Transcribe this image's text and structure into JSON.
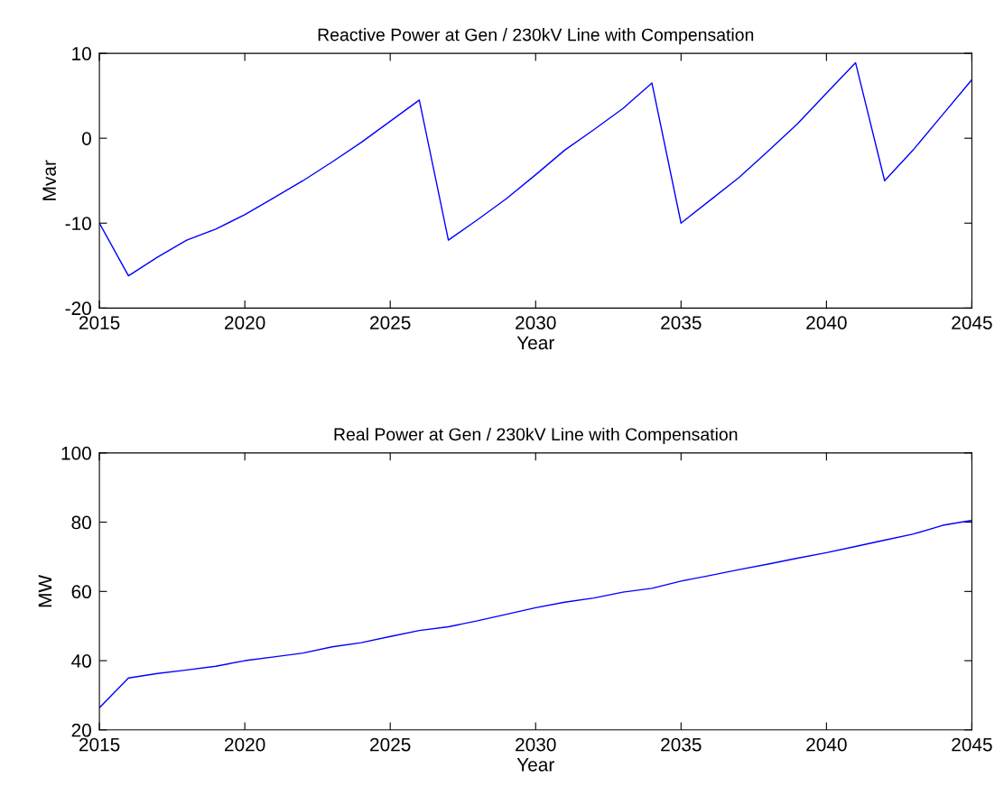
{
  "chart_data": [
    {
      "type": "line",
      "title": "Reactive Power at Gen / 230kV Line with Compensation",
      "xlabel": "Year",
      "ylabel": "Mvar",
      "x": [
        2015,
        2016,
        2017,
        2018,
        2019,
        2020,
        2021,
        2022,
        2023,
        2024,
        2025,
        2026,
        2027,
        2028,
        2029,
        2030,
        2031,
        2032,
        2033,
        2034,
        2035,
        2036,
        2037,
        2038,
        2039,
        2040,
        2041,
        2042,
        2043,
        2044,
        2045
      ],
      "series": [
        {
          "color": "#0000ff",
          "values": [
            -10,
            -16.2,
            -14.0,
            -12.0,
            -10.7,
            -9.0,
            -7.0,
            -5.0,
            -2.8,
            -0.5,
            2.0,
            4.5,
            -12.0,
            -9.6,
            -7.1,
            -4.3,
            -1.4,
            1.0,
            3.5,
            6.5,
            -10.0,
            -7.3,
            -4.6,
            -1.5,
            1.7,
            5.3,
            8.9,
            -5.0,
            -1.3,
            2.8,
            6.9
          ]
        }
      ],
      "xlim": [
        2015,
        2045
      ],
      "xticks": [
        2015,
        2020,
        2025,
        2030,
        2035,
        2040,
        2045
      ],
      "ylim": [
        -20,
        10
      ],
      "yticks": [
        -20,
        -10,
        0,
        10
      ],
      "grid": false
    },
    {
      "type": "line",
      "title": "Real Power at Gen / 230kV Line with Compensation",
      "xlabel": "Year",
      "ylabel": "MW",
      "x": [
        2015,
        2016,
        2017,
        2018,
        2019,
        2020,
        2021,
        2022,
        2023,
        2024,
        2025,
        2026,
        2027,
        2028,
        2029,
        2030,
        2031,
        2032,
        2033,
        2034,
        2035,
        2036,
        2037,
        2038,
        2039,
        2040,
        2041,
        2042,
        2043,
        2044,
        2045
      ],
      "series": [
        {
          "color": "#0000ff",
          "values": [
            26.4,
            35.0,
            36.3,
            37.3,
            38.4,
            40.0,
            41.1,
            42.2,
            44.0,
            45.2,
            47.0,
            48.7,
            49.8,
            51.5,
            53.4,
            55.3,
            56.9,
            58.1,
            59.8,
            60.9,
            63.0,
            64.6,
            66.3,
            67.9,
            69.6,
            71.2,
            73.0,
            74.8,
            76.6,
            79.1,
            80.5
          ]
        }
      ],
      "xlim": [
        2015,
        2045
      ],
      "xticks": [
        2015,
        2020,
        2025,
        2030,
        2035,
        2040,
        2045
      ],
      "ylim": [
        20,
        100
      ],
      "yticks": [
        20,
        40,
        60,
        80,
        100
      ],
      "grid": false
    }
  ]
}
